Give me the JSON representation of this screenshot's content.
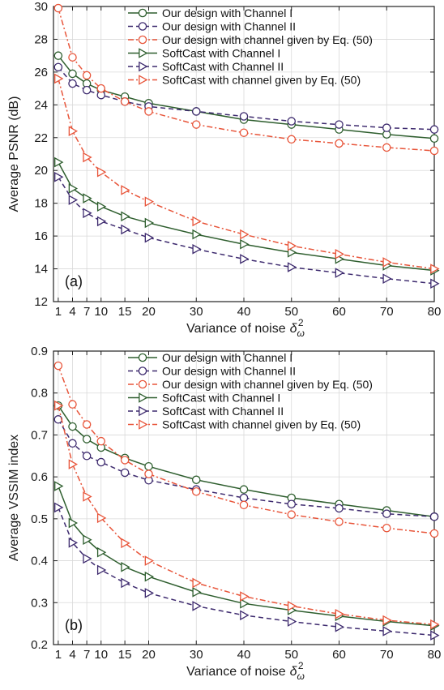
{
  "chart_data": [
    {
      "type": "line",
      "panel_label": "(a)",
      "xlabel": "Variance of noise",
      "xlabel_symbol": "δ",
      "xlabel_sub": "ω",
      "xlabel_sup": "2",
      "ylabel": "Average PSNR (dB)",
      "ylim": [
        12,
        30
      ],
      "yticks": [
        12,
        14,
        16,
        18,
        20,
        22,
        24,
        26,
        28,
        30
      ],
      "xlim": [
        0,
        80
      ],
      "xticks": [
        1,
        4,
        7,
        10,
        15,
        20,
        30,
        40,
        50,
        60,
        70,
        80
      ],
      "xtick_labels": [
        "1",
        "4",
        "7",
        "10",
        "15",
        "20",
        "30",
        "40",
        "50",
        "60",
        "70",
        "80"
      ],
      "grid": true,
      "legend_position": "top-right",
      "x": [
        1,
        4,
        7,
        10,
        15,
        20,
        30,
        40,
        50,
        60,
        70,
        80
      ],
      "series": [
        {
          "name": "Our design with Channel I",
          "marker": "circle",
          "color": "#2e5e2e",
          "dash": "solid",
          "values": [
            27.0,
            25.9,
            25.3,
            24.9,
            24.5,
            24.1,
            23.6,
            23.1,
            22.8,
            22.5,
            22.2,
            21.95
          ]
        },
        {
          "name": "Our design with Channel II",
          "marker": "circle",
          "color": "#3d2a6e",
          "dash": "dash",
          "values": [
            26.3,
            25.3,
            24.9,
            24.6,
            24.2,
            23.9,
            23.6,
            23.3,
            23.0,
            22.8,
            22.6,
            22.5
          ]
        },
        {
          "name": "Our design with channel given by Eq. (50)",
          "marker": "circle",
          "color": "#e8553a",
          "dash": "dashdot",
          "values": [
            29.9,
            26.9,
            25.8,
            25.0,
            24.2,
            23.6,
            22.8,
            22.3,
            21.9,
            21.65,
            21.4,
            21.2
          ]
        },
        {
          "name": "SoftCast with Channel I",
          "marker": "triangle",
          "color": "#2e5e2e",
          "dash": "solid",
          "values": [
            20.5,
            18.9,
            18.3,
            17.8,
            17.2,
            16.8,
            16.1,
            15.5,
            15.0,
            14.6,
            14.2,
            13.9
          ]
        },
        {
          "name": "SoftCast with Channel II",
          "marker": "triangle",
          "color": "#3d2a6e",
          "dash": "dash",
          "values": [
            19.6,
            18.2,
            17.4,
            16.9,
            16.4,
            15.9,
            15.2,
            14.6,
            14.1,
            13.75,
            13.4,
            13.1
          ]
        },
        {
          "name": "SoftCast with channel given by Eq. (50)",
          "marker": "triangle",
          "color": "#e8553a",
          "dash": "dashdot",
          "values": [
            25.6,
            22.4,
            20.8,
            19.9,
            18.8,
            18.1,
            16.9,
            16.1,
            15.4,
            14.9,
            14.4,
            14.0
          ]
        }
      ]
    },
    {
      "type": "line",
      "panel_label": "(b)",
      "xlabel": "Variance of noise",
      "xlabel_symbol": "δ",
      "xlabel_sub": "ω",
      "xlabel_sup": "2",
      "ylabel": "Average VSSIM index",
      "ylim": [
        0.2,
        0.9
      ],
      "yticks": [
        0.2,
        0.3,
        0.4,
        0.5,
        0.6,
        0.7,
        0.8,
        0.9
      ],
      "ytick_labels": [
        "0.2",
        "0.3",
        "0.4",
        "0.5",
        "0.6",
        "0.7",
        "0.8",
        "0.9"
      ],
      "xlim": [
        0,
        80
      ],
      "xticks": [
        1,
        4,
        7,
        10,
        15,
        20,
        30,
        40,
        50,
        60,
        70,
        80
      ],
      "xtick_labels": [
        "1",
        "4",
        "7",
        "10",
        "15",
        "20",
        "30",
        "40",
        "50",
        "60",
        "70",
        "80"
      ],
      "grid": true,
      "legend_position": "top-right",
      "x": [
        1,
        4,
        7,
        10,
        15,
        20,
        30,
        40,
        50,
        60,
        70,
        80
      ],
      "series": [
        {
          "name": "Our design with Channel I",
          "marker": "circle",
          "color": "#2e5e2e",
          "dash": "solid",
          "values": [
            0.77,
            0.72,
            0.69,
            0.67,
            0.645,
            0.625,
            0.593,
            0.57,
            0.55,
            0.535,
            0.52,
            0.505
          ]
        },
        {
          "name": "Our design with Channel II",
          "marker": "circle",
          "color": "#3d2a6e",
          "dash": "dash",
          "values": [
            0.737,
            0.68,
            0.65,
            0.635,
            0.61,
            0.592,
            0.57,
            0.55,
            0.535,
            0.525,
            0.512,
            0.505
          ]
        },
        {
          "name": "Our design with channel given by Eq. (50)",
          "marker": "circle",
          "color": "#e8553a",
          "dash": "dashdot",
          "values": [
            0.865,
            0.773,
            0.725,
            0.685,
            0.64,
            0.607,
            0.565,
            0.533,
            0.51,
            0.493,
            0.478,
            0.465
          ]
        },
        {
          "name": "SoftCast with Channel I",
          "marker": "triangle",
          "color": "#2e5e2e",
          "dash": "solid",
          "values": [
            0.578,
            0.49,
            0.45,
            0.42,
            0.385,
            0.362,
            0.325,
            0.298,
            0.282,
            0.268,
            0.255,
            0.245
          ]
        },
        {
          "name": "SoftCast with Channel II",
          "marker": "triangle",
          "color": "#3d2a6e",
          "dash": "dash",
          "values": [
            0.527,
            0.443,
            0.405,
            0.378,
            0.347,
            0.323,
            0.292,
            0.27,
            0.255,
            0.242,
            0.232,
            0.222
          ]
        },
        {
          "name": "SoftCast with channel given by Eq. (50)",
          "marker": "triangle",
          "color": "#e8553a",
          "dash": "dashdot",
          "values": [
            0.77,
            0.63,
            0.553,
            0.502,
            0.442,
            0.4,
            0.347,
            0.315,
            0.292,
            0.273,
            0.258,
            0.248
          ]
        }
      ]
    }
  ]
}
